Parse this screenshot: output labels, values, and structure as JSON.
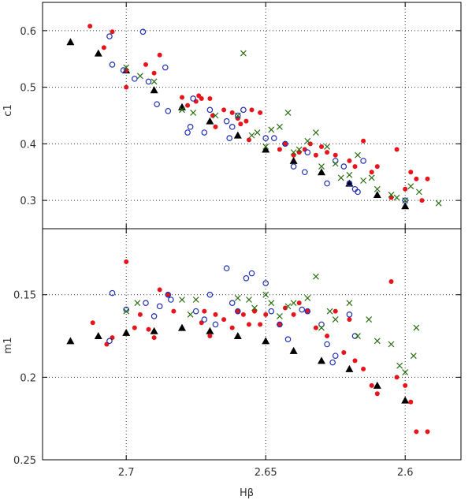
{
  "figure": {
    "xlabel": "Hβ"
  },
  "colors": {
    "triangle": "#000000",
    "filled_circle": "#e8141b",
    "open_circle": "#1f2fb5",
    "cross": "#2a6e12"
  },
  "chart_data": [
    {
      "type": "scatter",
      "ylabel": "c1",
      "xlabel": "",
      "xlim": [
        2.73,
        2.58
      ],
      "ylim": [
        0.25,
        0.65
      ],
      "x_ticks": [
        2.7,
        2.65,
        2.6
      ],
      "y_ticks": [
        0.3,
        0.4,
        0.5,
        0.6
      ],
      "y_tick_labels": [
        "0.3",
        "0.4",
        "0.5",
        "0.6"
      ],
      "grid": true,
      "series": [
        {
          "marker": "filled-triangle",
          "color": "#000000",
          "points": [
            [
              2.72,
              0.58
            ],
            [
              2.71,
              0.56
            ],
            [
              2.7,
              0.53
            ],
            [
              2.69,
              0.495
            ],
            [
              2.68,
              0.465
            ],
            [
              2.67,
              0.44
            ],
            [
              2.66,
              0.415
            ],
            [
              2.65,
              0.39
            ],
            [
              2.64,
              0.37
            ],
            [
              2.63,
              0.35
            ],
            [
              2.62,
              0.33
            ],
            [
              2.61,
              0.31
            ],
            [
              2.6,
              0.29
            ]
          ]
        },
        {
          "marker": "filled-circle",
          "color": "#e8141b",
          "points": [
            [
              2.713,
              0.608
            ],
            [
              2.708,
              0.57
            ],
            [
              2.705,
              0.598
            ],
            [
              2.7,
              0.5
            ],
            [
              2.7,
              0.53
            ],
            [
              2.693,
              0.54
            ],
            [
              2.69,
              0.525
            ],
            [
              2.688,
              0.557
            ],
            [
              2.68,
              0.482
            ],
            [
              2.678,
              0.468
            ],
            [
              2.675,
              0.475
            ],
            [
              2.674,
              0.485
            ],
            [
              2.673,
              0.48
            ],
            [
              2.67,
              0.48
            ],
            [
              2.669,
              0.45
            ],
            [
              2.668,
              0.43
            ],
            [
              2.665,
              0.46
            ],
            [
              2.662,
              0.455
            ],
            [
              2.66,
              0.445
            ],
            [
              2.659,
              0.435
            ],
            [
              2.657,
              0.44
            ],
            [
              2.656,
              0.407
            ],
            [
              2.655,
              0.46
            ],
            [
              2.652,
              0.455
            ],
            [
              2.645,
              0.39
            ],
            [
              2.643,
              0.4
            ],
            [
              2.64,
              0.38
            ],
            [
              2.638,
              0.385
            ],
            [
              2.636,
              0.39
            ],
            [
              2.634,
              0.4
            ],
            [
              2.632,
              0.38
            ],
            [
              2.63,
              0.395
            ],
            [
              2.628,
              0.385
            ],
            [
              2.625,
              0.38
            ],
            [
              2.62,
              0.37
            ],
            [
              2.618,
              0.36
            ],
            [
              2.615,
              0.405
            ],
            [
              2.612,
              0.35
            ],
            [
              2.61,
              0.36
            ],
            [
              2.605,
              0.305
            ],
            [
              2.603,
              0.39
            ],
            [
              2.6,
              0.32
            ],
            [
              2.598,
              0.35
            ],
            [
              2.596,
              0.338
            ],
            [
              2.594,
              0.3
            ],
            [
              2.592,
              0.338
            ]
          ]
        },
        {
          "marker": "open-circle",
          "color": "#1f2fb5",
          "points": [
            [
              2.706,
              0.59
            ],
            [
              2.705,
              0.54
            ],
            [
              2.701,
              0.53
            ],
            [
              2.697,
              0.515
            ],
            [
              2.694,
              0.598
            ],
            [
              2.692,
              0.51
            ],
            [
              2.689,
              0.47
            ],
            [
              2.686,
              0.535
            ],
            [
              2.685,
              0.458
            ],
            [
              2.678,
              0.42
            ],
            [
              2.677,
              0.43
            ],
            [
              2.676,
              0.48
            ],
            [
              2.672,
              0.42
            ],
            [
              2.67,
              0.46
            ],
            [
              2.664,
              0.44
            ],
            [
              2.663,
              0.41
            ],
            [
              2.662,
              0.43
            ],
            [
              2.66,
              0.45
            ],
            [
              2.658,
              0.46
            ],
            [
              2.65,
              0.41
            ],
            [
              2.647,
              0.41
            ],
            [
              2.643,
              0.4
            ],
            [
              2.64,
              0.36
            ],
            [
              2.636,
              0.35
            ],
            [
              2.635,
              0.385
            ],
            [
              2.628,
              0.33
            ],
            [
              2.625,
              0.37
            ],
            [
              2.622,
              0.36
            ],
            [
              2.62,
              0.33
            ],
            [
              2.618,
              0.32
            ],
            [
              2.617,
              0.315
            ],
            [
              2.615,
              0.37
            ],
            [
              2.6,
              0.3
            ]
          ]
        },
        {
          "marker": "cross",
          "color": "#2a6e12",
          "points": [
            [
              2.7,
              0.535
            ],
            [
              2.695,
              0.52
            ],
            [
              2.69,
              0.51
            ],
            [
              2.68,
              0.46
            ],
            [
              2.676,
              0.455
            ],
            [
              2.668,
              0.45
            ],
            [
              2.66,
              0.45
            ],
            [
              2.658,
              0.56
            ],
            [
              2.655,
              0.415
            ],
            [
              2.653,
              0.42
            ],
            [
              2.65,
              0.395
            ],
            [
              2.648,
              0.425
            ],
            [
              2.645,
              0.43
            ],
            [
              2.642,
              0.455
            ],
            [
              2.64,
              0.385
            ],
            [
              2.638,
              0.39
            ],
            [
              2.635,
              0.405
            ],
            [
              2.632,
              0.42
            ],
            [
              2.63,
              0.36
            ],
            [
              2.628,
              0.395
            ],
            [
              2.625,
              0.365
            ],
            [
              2.623,
              0.34
            ],
            [
              2.62,
              0.345
            ],
            [
              2.617,
              0.38
            ],
            [
              2.615,
              0.335
            ],
            [
              2.612,
              0.34
            ],
            [
              2.61,
              0.32
            ],
            [
              2.605,
              0.31
            ],
            [
              2.603,
              0.305
            ],
            [
              2.6,
              0.3
            ],
            [
              2.598,
              0.325
            ],
            [
              2.595,
              0.315
            ],
            [
              2.588,
              0.295
            ]
          ]
        }
      ]
    },
    {
      "type": "scatter",
      "ylabel": "m1",
      "xlabel": "Hβ",
      "xlim": [
        2.73,
        2.58
      ],
      "ylim": [
        0.25,
        0.11
      ],
      "y_inverted": true,
      "x_ticks": [
        2.7,
        2.65,
        2.6
      ],
      "x_tick_labels": [
        "2.7",
        "2.65",
        "2.6"
      ],
      "y_ticks": [
        0.15,
        0.2,
        0.25
      ],
      "y_tick_labels": [
        "0.15",
        "0.2",
        "0.25"
      ],
      "grid": true,
      "series": [
        {
          "marker": "filled-triangle",
          "color": "#000000",
          "points": [
            [
              2.72,
              0.178
            ],
            [
              2.71,
              0.175
            ],
            [
              2.7,
              0.173
            ],
            [
              2.69,
              0.172
            ],
            [
              2.68,
              0.17
            ],
            [
              2.67,
              0.172
            ],
            [
              2.66,
              0.175
            ],
            [
              2.65,
              0.178
            ],
            [
              2.64,
              0.184
            ],
            [
              2.63,
              0.19
            ],
            [
              2.62,
              0.195
            ],
            [
              2.61,
              0.205
            ],
            [
              2.6,
              0.214
            ]
          ]
        },
        {
          "marker": "filled-circle",
          "color": "#e8141b",
          "points": [
            [
              2.712,
              0.167
            ],
            [
              2.707,
              0.18
            ],
            [
              2.705,
              0.176
            ],
            [
              2.7,
              0.13
            ],
            [
              2.697,
              0.17
            ],
            [
              2.695,
              0.162
            ],
            [
              2.692,
              0.171
            ],
            [
              2.69,
              0.176
            ],
            [
              2.688,
              0.147
            ],
            [
              2.685,
              0.15
            ],
            [
              2.683,
              0.16
            ],
            [
              2.673,
              0.167
            ],
            [
              2.672,
              0.16
            ],
            [
              2.67,
              0.175
            ],
            [
              2.668,
              0.162
            ],
            [
              2.665,
              0.165
            ],
            [
              2.662,
              0.17
            ],
            [
              2.66,
              0.16
            ],
            [
              2.658,
              0.162
            ],
            [
              2.656,
              0.168
            ],
            [
              2.654,
              0.16
            ],
            [
              2.652,
              0.168
            ],
            [
              2.65,
              0.162
            ],
            [
              2.645,
              0.168
            ],
            [
              2.643,
              0.158
            ],
            [
              2.64,
              0.162
            ],
            [
              2.638,
              0.155
            ],
            [
              2.635,
              0.16
            ],
            [
              2.632,
              0.17
            ],
            [
              2.628,
              0.175
            ],
            [
              2.625,
              0.16
            ],
            [
              2.622,
              0.185
            ],
            [
              2.62,
              0.165
            ],
            [
              2.618,
              0.19
            ],
            [
              2.615,
              0.195
            ],
            [
              2.612,
              0.205
            ],
            [
              2.61,
              0.21
            ],
            [
              2.605,
              0.142
            ],
            [
              2.603,
              0.2
            ],
            [
              2.6,
              0.205
            ],
            [
              2.598,
              0.215
            ],
            [
              2.596,
              0.233
            ],
            [
              2.592,
              0.233
            ]
          ]
        },
        {
          "marker": "open-circle",
          "color": "#1f2fb5",
          "points": [
            [
              2.706,
              0.178
            ],
            [
              2.705,
              0.149
            ],
            [
              2.7,
              0.159
            ],
            [
              2.693,
              0.155
            ],
            [
              2.69,
              0.163
            ],
            [
              2.688,
              0.157
            ],
            [
              2.685,
              0.15
            ],
            [
              2.684,
              0.153
            ],
            [
              2.67,
              0.15
            ],
            [
              2.675,
              0.16
            ],
            [
              2.672,
              0.165
            ],
            [
              2.668,
              0.168
            ],
            [
              2.664,
              0.134
            ],
            [
              2.662,
              0.155
            ],
            [
              2.66,
              0.16
            ],
            [
              2.657,
              0.14
            ],
            [
              2.655,
              0.137
            ],
            [
              2.65,
              0.143
            ],
            [
              2.648,
              0.16
            ],
            [
              2.645,
              0.168
            ],
            [
              2.642,
              0.177
            ],
            [
              2.637,
              0.159
            ],
            [
              2.635,
              0.16
            ],
            [
              2.63,
              0.168
            ],
            [
              2.628,
              0.18
            ],
            [
              2.626,
              0.191
            ],
            [
              2.625,
              0.187
            ],
            [
              2.62,
              0.162
            ],
            [
              2.618,
              0.175
            ]
          ]
        },
        {
          "marker": "cross",
          "color": "#2a6e12",
          "points": [
            [
              2.7,
              0.16
            ],
            [
              2.696,
              0.155
            ],
            [
              2.68,
              0.153
            ],
            [
              2.677,
              0.162
            ],
            [
              2.675,
              0.153
            ],
            [
              2.66,
              0.152
            ],
            [
              2.656,
              0.153
            ],
            [
              2.654,
              0.158
            ],
            [
              2.65,
              0.15
            ],
            [
              2.648,
              0.155
            ],
            [
              2.645,
              0.163
            ],
            [
              2.642,
              0.157
            ],
            [
              2.64,
              0.155
            ],
            [
              2.635,
              0.152
            ],
            [
              2.632,
              0.139
            ],
            [
              2.63,
              0.17
            ],
            [
              2.627,
              0.16
            ],
            [
              2.625,
              0.165
            ],
            [
              2.62,
              0.155
            ],
            [
              2.617,
              0.175
            ],
            [
              2.613,
              0.165
            ],
            [
              2.61,
              0.178
            ],
            [
              2.605,
              0.18
            ],
            [
              2.602,
              0.193
            ],
            [
              2.6,
              0.197
            ],
            [
              2.597,
              0.187
            ],
            [
              2.596,
              0.17
            ]
          ]
        }
      ]
    }
  ]
}
